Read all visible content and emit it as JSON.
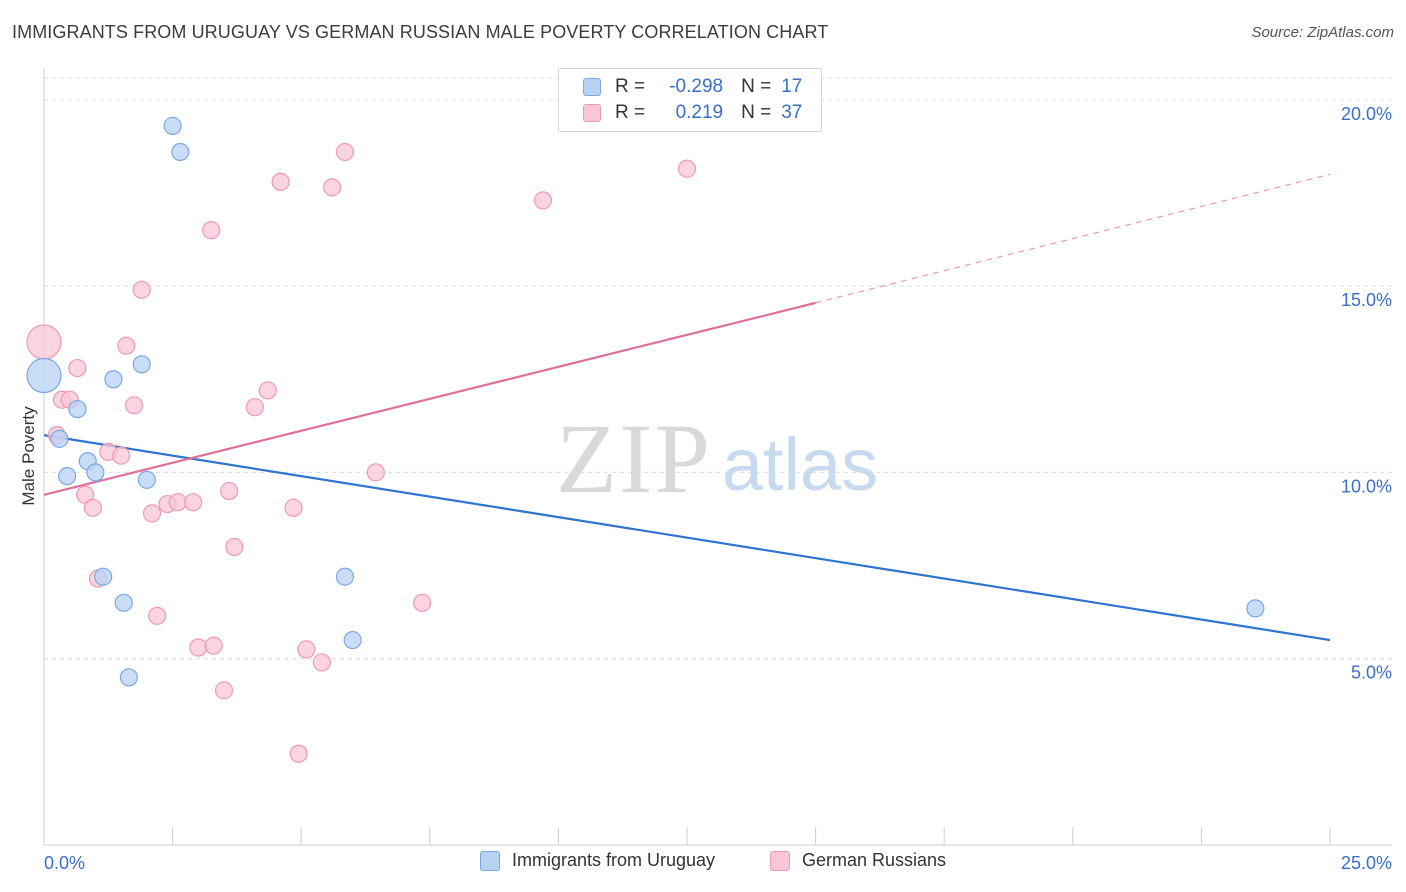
{
  "title": "IMMIGRANTS FROM URUGUAY VS GERMAN RUSSIAN MALE POVERTY CORRELATION CHART",
  "source": "Source: ZipAtlas.com",
  "watermark": {
    "zip": "ZIP",
    "atlas": "atlas"
  },
  "colors": {
    "blue_fill": "#b8d2f4",
    "blue_stroke": "#7aa8e6",
    "blue_line": "#2f74d0",
    "pink_fill": "#f8c6d6",
    "pink_stroke": "#ee9ab5",
    "pink_line": "#e07099",
    "axis_text": "#3a6fc8",
    "grid": "#dcdcdc"
  },
  "legend": {
    "rows": [
      {
        "r_label": "R =",
        "r_value": "-0.298",
        "n_label": "N =",
        "n_value": "17",
        "series": "blue"
      },
      {
        "r_label": "R =",
        "r_value": "0.219",
        "n_label": "N =",
        "n_value": "37",
        "series": "pink"
      }
    ]
  },
  "bottom_legend": [
    {
      "label": "Immigrants from Uruguay",
      "series": "blue"
    },
    {
      "label": "German Russians",
      "series": "pink"
    }
  ],
  "chart_data": {
    "type": "scatter",
    "title": "IMMIGRANTS FROM URUGUAY VS GERMAN RUSSIAN MALE POVERTY CORRELATION CHART",
    "xlabel": "",
    "ylabel": "Male Poverty",
    "xlim": [
      0,
      25
    ],
    "ylim": [
      0,
      20.8
    ],
    "x_tick_labels": [
      "0.0%",
      "25.0%"
    ],
    "y_ticks": [
      5,
      10,
      15,
      20
    ],
    "y_tick_labels": [
      "5.0%",
      "10.0%",
      "15.0%",
      "20.0%"
    ],
    "grid": "horizontal dashed",
    "legend_placement": "top-center",
    "series": [
      {
        "name": "Immigrants from Uruguay",
        "color": "#b8d2f4",
        "points": [
          {
            "x": 0.0,
            "y": 12.6,
            "big": true
          },
          {
            "x": 0.3,
            "y": 10.9
          },
          {
            "x": 0.45,
            "y": 9.9
          },
          {
            "x": 0.65,
            "y": 11.7
          },
          {
            "x": 0.85,
            "y": 10.3
          },
          {
            "x": 1.0,
            "y": 10.0
          },
          {
            "x": 1.15,
            "y": 7.2
          },
          {
            "x": 1.35,
            "y": 12.5
          },
          {
            "x": 1.55,
            "y": 6.5
          },
          {
            "x": 1.65,
            "y": 4.5
          },
          {
            "x": 1.9,
            "y": 12.9
          },
          {
            "x": 2.0,
            "y": 9.8
          },
          {
            "x": 2.5,
            "y": 19.3
          },
          {
            "x": 2.65,
            "y": 18.6
          },
          {
            "x": 5.85,
            "y": 7.2
          },
          {
            "x": 6.0,
            "y": 5.5
          },
          {
            "x": 23.55,
            "y": 6.35
          }
        ],
        "trend": {
          "x1": 0,
          "y1": 11.0,
          "x2": 25,
          "y2": 5.5
        }
      },
      {
        "name": "German Russians",
        "color": "#f8c6d6",
        "points": [
          {
            "x": 0.0,
            "y": 13.5,
            "big": true
          },
          {
            "x": 0.25,
            "y": 11.0
          },
          {
            "x": 0.35,
            "y": 11.95
          },
          {
            "x": 0.5,
            "y": 11.95
          },
          {
            "x": 0.65,
            "y": 12.8
          },
          {
            "x": 0.8,
            "y": 9.4
          },
          {
            "x": 0.95,
            "y": 9.05
          },
          {
            "x": 1.05,
            "y": 7.15
          },
          {
            "x": 1.25,
            "y": 10.55
          },
          {
            "x": 1.5,
            "y": 10.45
          },
          {
            "x": 1.6,
            "y": 13.4
          },
          {
            "x": 1.75,
            "y": 11.8
          },
          {
            "x": 1.9,
            "y": 14.9
          },
          {
            "x": 2.1,
            "y": 8.9
          },
          {
            "x": 2.2,
            "y": 6.15
          },
          {
            "x": 2.4,
            "y": 9.15
          },
          {
            "x": 2.6,
            "y": 9.2
          },
          {
            "x": 2.9,
            "y": 9.2
          },
          {
            "x": 3.0,
            "y": 5.3
          },
          {
            "x": 3.25,
            "y": 16.5
          },
          {
            "x": 3.3,
            "y": 5.35
          },
          {
            "x": 3.5,
            "y": 4.15
          },
          {
            "x": 3.6,
            "y": 9.5
          },
          {
            "x": 3.7,
            "y": 8.0
          },
          {
            "x": 4.1,
            "y": 11.75
          },
          {
            "x": 4.35,
            "y": 12.2
          },
          {
            "x": 4.6,
            "y": 17.8
          },
          {
            "x": 4.85,
            "y": 9.05
          },
          {
            "x": 4.95,
            "y": 2.45
          },
          {
            "x": 5.1,
            "y": 5.25
          },
          {
            "x": 5.4,
            "y": 4.9
          },
          {
            "x": 5.6,
            "y": 17.65
          },
          {
            "x": 5.85,
            "y": 18.6
          },
          {
            "x": 6.45,
            "y": 10.0
          },
          {
            "x": 7.35,
            "y": 6.5
          },
          {
            "x": 9.7,
            "y": 17.3
          },
          {
            "x": 12.5,
            "y": 18.15
          }
        ],
        "trend": {
          "x1": 0,
          "y1": 9.4,
          "x2": 15,
          "y2": 14.55
        },
        "trend_dashed": {
          "x1": 15,
          "y1": 14.55,
          "x2": 25,
          "y2": 18.0
        }
      }
    ]
  }
}
